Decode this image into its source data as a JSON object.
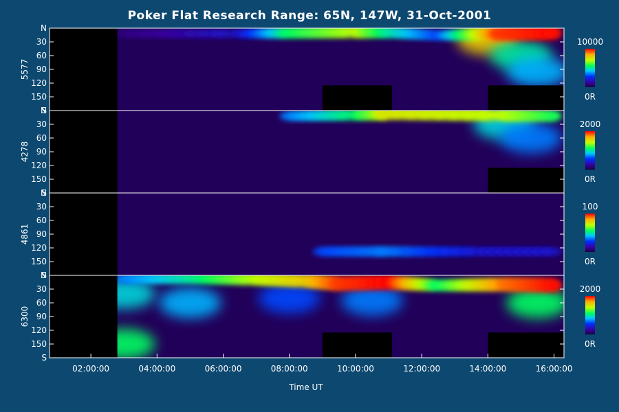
{
  "chart_data": {
    "type": "heatmap",
    "title": "Poker Flat Research Range: 65N, 147W, 31-Oct-2001",
    "xlabel": "Time UT",
    "x_ticks": [
      "02:00:00",
      "04:00:00",
      "06:00:00",
      "08:00:00",
      "10:00:00",
      "12:00:00",
      "14:00:00",
      "16:00:00"
    ],
    "x_tick_hours": [
      2,
      4,
      6,
      8,
      10,
      12,
      14,
      16
    ],
    "xlim_hours": [
      0.75,
      16.3
    ],
    "y_ticks": [
      "N",
      "30",
      "60",
      "90",
      "120",
      "150",
      "S"
    ],
    "y_tick_values": [
      0,
      30,
      60,
      90,
      120,
      150,
      180
    ],
    "ylim": [
      0,
      180
    ],
    "panels": [
      {
        "ylabel": "5577",
        "colorbar": {
          "max_label": "10000",
          "min_label": "0R",
          "max": 10000,
          "min": 0
        },
        "data_start_hour": 2.8,
        "blanks": [
          {
            "t0": 9.0,
            "t1": 11.1,
            "y0": 125,
            "y1": 180
          },
          {
            "t0": 14.0,
            "t1": 16.3,
            "y0": 125,
            "y1": 180
          }
        ],
        "arc": [
          {
            "t": 3.0,
            "y": 12,
            "v": 0.08
          },
          {
            "t": 6.5,
            "y": 12,
            "v": 0.2
          },
          {
            "t": 8.0,
            "y": 10,
            "v": 0.55
          },
          {
            "t": 10.0,
            "y": 8,
            "v": 0.7
          },
          {
            "t": 11.0,
            "y": 9,
            "v": 0.5
          },
          {
            "t": 12.5,
            "y": 16,
            "v": 0.3
          },
          {
            "t": 14.3,
            "y": 12,
            "v": 0.95
          },
          {
            "t": 16.2,
            "y": 10,
            "v": 1.0
          }
        ],
        "glow": [
          {
            "t": 14.0,
            "y": 25,
            "v": 0.8
          },
          {
            "t": 15.0,
            "y": 60,
            "v": 0.5
          },
          {
            "t": 15.5,
            "y": 95,
            "v": 0.4
          }
        ]
      },
      {
        "ylabel": "4278",
        "colorbar": {
          "max_label": "2000",
          "min_label": "0R",
          "max": 2000,
          "min": 0
        },
        "data_start_hour": 2.8,
        "blanks": [
          {
            "t0": 14.0,
            "t1": 16.3,
            "y0": 125,
            "y1": 180
          }
        ],
        "arc": [
          {
            "t": 8.0,
            "y": 12,
            "v": 0.35
          },
          {
            "t": 10.0,
            "y": 9,
            "v": 0.55
          },
          {
            "t": 11.0,
            "y": 6,
            "v": 0.75
          },
          {
            "t": 14.5,
            "y": 10,
            "v": 0.7
          },
          {
            "t": 16.2,
            "y": 12,
            "v": 0.55
          }
        ],
        "glow": [
          {
            "t": 14.5,
            "y": 30,
            "v": 0.45
          },
          {
            "t": 15.3,
            "y": 60,
            "v": 0.35
          }
        ]
      },
      {
        "ylabel": "4861",
        "colorbar": {
          "max_label": "100",
          "min_label": "0R",
          "max": 100,
          "min": 0
        },
        "data_start_hour": 2.8,
        "blanks": [],
        "arc": [
          {
            "t": 9.0,
            "y": 128,
            "v": 0.3
          },
          {
            "t": 11.0,
            "y": 128,
            "v": 0.35
          },
          {
            "t": 14.0,
            "y": 128,
            "v": 0.2
          },
          {
            "t": 16.2,
            "y": 128,
            "v": 0.2
          }
        ],
        "glow": []
      },
      {
        "ylabel": "6300",
        "colorbar": {
          "max_label": "2000",
          "min_label": "0R",
          "max": 2000,
          "min": 0
        },
        "data_start_hour": 2.8,
        "blanks": [
          {
            "t0": 9.0,
            "t1": 11.1,
            "y0": 125,
            "y1": 180
          },
          {
            "t0": 14.0,
            "t1": 16.3,
            "y0": 125,
            "y1": 180
          }
        ],
        "arc": [
          {
            "t": 3.0,
            "y": 8,
            "v": 0.35
          },
          {
            "t": 5.0,
            "y": 6,
            "v": 0.5
          },
          {
            "t": 7.0,
            "y": 8,
            "v": 0.7
          },
          {
            "t": 8.5,
            "y": 12,
            "v": 0.8
          },
          {
            "t": 9.5,
            "y": 18,
            "v": 0.95
          },
          {
            "t": 11.0,
            "y": 15,
            "v": 1.0
          },
          {
            "t": 12.5,
            "y": 22,
            "v": 0.55
          },
          {
            "t": 14.5,
            "y": 20,
            "v": 0.9
          },
          {
            "t": 16.2,
            "y": 22,
            "v": 1.0
          }
        ],
        "glow": [
          {
            "t": 3.0,
            "y": 40,
            "v": 0.45
          },
          {
            "t": 3.0,
            "y": 150,
            "v": 0.55
          },
          {
            "t": 5.0,
            "y": 60,
            "v": 0.4
          },
          {
            "t": 8.0,
            "y": 50,
            "v": 0.3
          },
          {
            "t": 10.5,
            "y": 55,
            "v": 0.35
          },
          {
            "t": 15.5,
            "y": 60,
            "v": 0.55
          }
        ]
      }
    ]
  }
}
